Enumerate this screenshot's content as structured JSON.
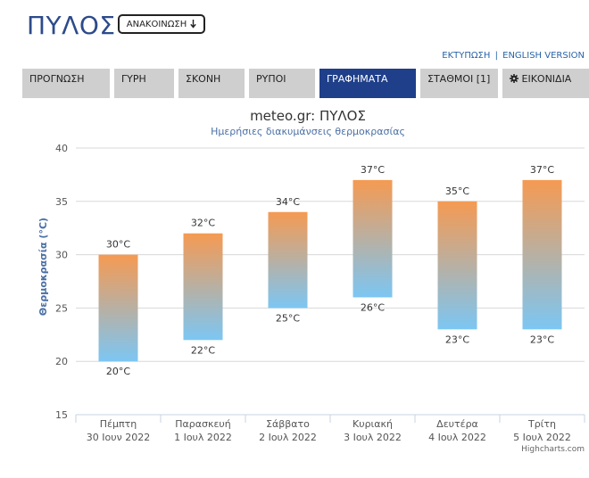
{
  "header": {
    "title": "ΠΥΛΟΣ",
    "announcement_label": "ΑΝΑΚΟΙΝΩΣΗ",
    "announcement_icon": "sort-arrow-icon",
    "print_link": "ΕΚΤΥΠΩΣΗ",
    "link_separator": "|",
    "english_link": "ENGLISH VERSION"
  },
  "tabs": [
    {
      "label": "ΠΡΟΓΝΩΣΗ"
    },
    {
      "label": "ΓΥΡΗ"
    },
    {
      "label": "ΣΚΟΝΗ"
    },
    {
      "label": "ΡΥΠΟΙ"
    },
    {
      "label": "ΓΡΑΦΗΜΑΤΑ",
      "active": true
    },
    {
      "label": "ΣΤΑΘΜΟΙ [1]"
    },
    {
      "label": "ΕΙΚΟΝΙΔΙΑ",
      "icon": "gear-icon"
    }
  ],
  "colors": {
    "accent": "#1f3f8a",
    "title": "#2c4b8b",
    "bar_top": "#f59a52",
    "bar_bottom": "#7cc6f3"
  },
  "chart_data": {
    "type": "bar",
    "title": "meteo.gr: ΠΥΛΟΣ",
    "subtitle": "Ημερήσιες διακυμάνσεις θερμοκρασίας",
    "ylabel": "Θερμοκρασία (°C)",
    "ylim": [
      15,
      40
    ],
    "yticks": [
      15,
      20,
      25,
      30,
      35,
      40
    ],
    "grid": true,
    "categories": [
      {
        "day": "Πέμπτη",
        "date": "30 Ιουν 2022"
      },
      {
        "day": "Παρασκευή",
        "date": "1 Ιουλ 2022"
      },
      {
        "day": "Σάββατο",
        "date": "2 Ιουλ 2022"
      },
      {
        "day": "Κυριακή",
        "date": "3 Ιουλ 2022"
      },
      {
        "day": "Δευτέρα",
        "date": "4 Ιουλ 2022"
      },
      {
        "day": "Τρίτη",
        "date": "5 Ιουλ 2022"
      }
    ],
    "low": [
      20,
      22,
      25,
      26,
      23,
      23
    ],
    "high": [
      30,
      32,
      34,
      37,
      35,
      37
    ],
    "unit": "°C",
    "credit": "Highcharts.com"
  }
}
